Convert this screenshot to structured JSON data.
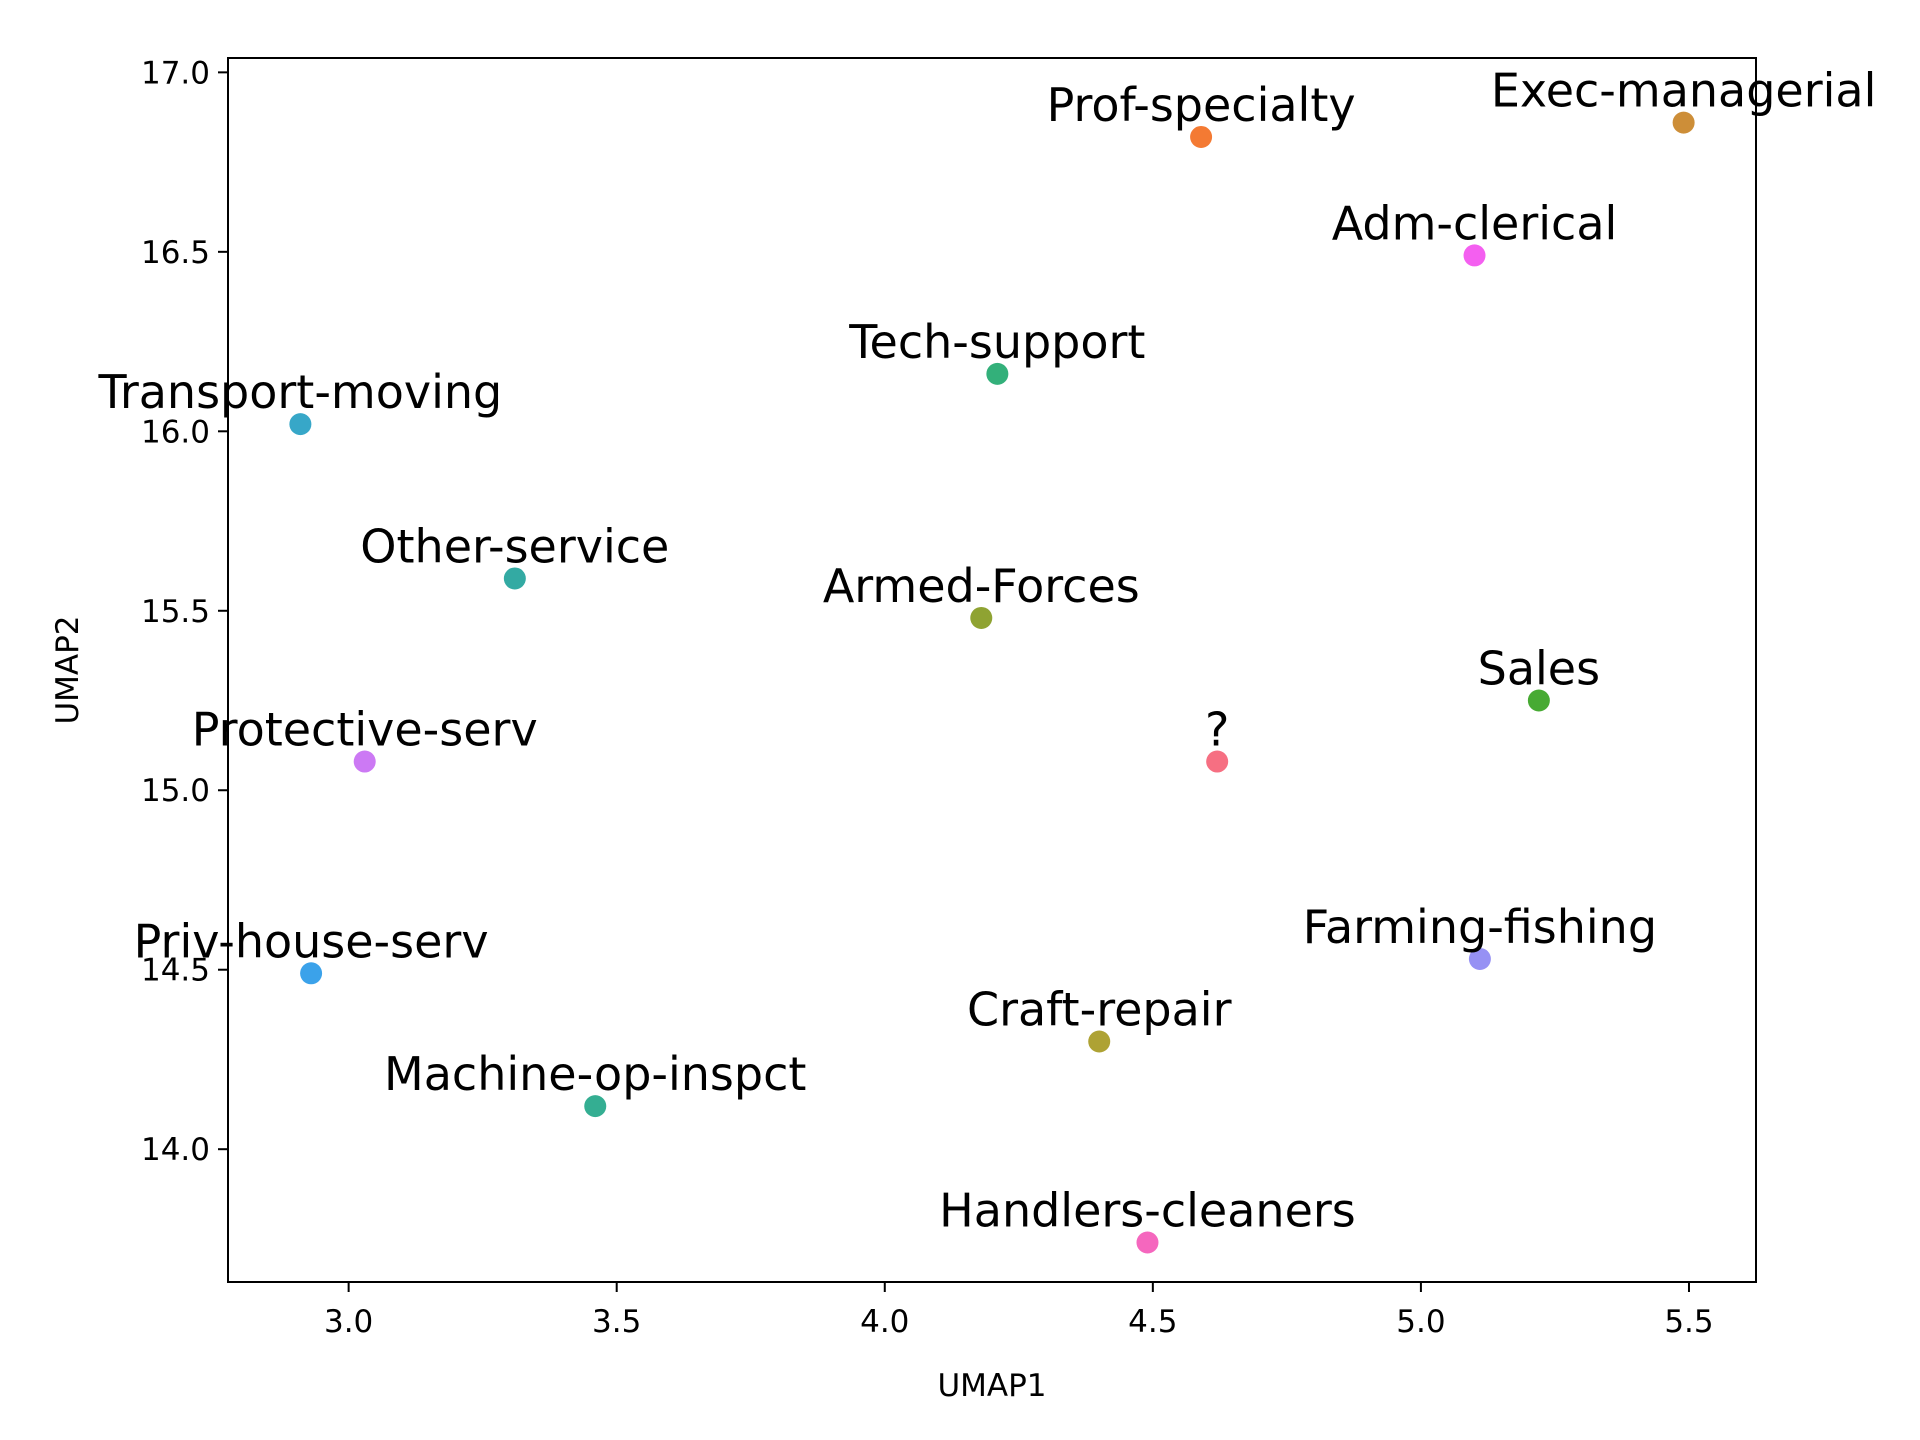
{
  "chart_data": {
    "type": "scatter",
    "title": "",
    "xlabel": "UMAP1",
    "ylabel": "UMAP2",
    "xlim": [
      2.775,
      5.625
    ],
    "ylim": [
      13.63,
      17.04
    ],
    "xticks": [
      3.0,
      3.5,
      4.0,
      4.5,
      5.0,
      5.5
    ],
    "xtick_labels": [
      "3.0",
      "3.5",
      "4.0",
      "4.5",
      "5.0",
      "5.5"
    ],
    "yticks": [
      14.0,
      14.5,
      15.0,
      15.5,
      16.0,
      16.5,
      17.0
    ],
    "ytick_labels": [
      "14.0",
      "14.5",
      "15.0",
      "15.5",
      "16.0",
      "16.5",
      "17.0"
    ],
    "grid": false,
    "points": [
      {
        "label": "Prof-specialty",
        "x": 4.59,
        "y": 16.82,
        "color": "#f47a33"
      },
      {
        "label": "Exec-managerial",
        "x": 5.49,
        "y": 16.86,
        "color": "#cd8e38"
      },
      {
        "label": "Adm-clerical",
        "x": 5.1,
        "y": 16.49,
        "color": "#f45ff0"
      },
      {
        "label": "Tech-support",
        "x": 4.21,
        "y": 16.16,
        "color": "#33b07a"
      },
      {
        "label": "Transport-moving",
        "x": 2.91,
        "y": 16.02,
        "color": "#37a7c8"
      },
      {
        "label": "Other-service",
        "x": 3.31,
        "y": 15.59,
        "color": "#33aaa3"
      },
      {
        "label": "Armed-Forces",
        "x": 4.18,
        "y": 15.48,
        "color": "#8fa332"
      },
      {
        "label": "Sales",
        "x": 5.22,
        "y": 15.25,
        "color": "#47aa33"
      },
      {
        "label": "?",
        "x": 4.62,
        "y": 15.08,
        "color": "#f66f82"
      },
      {
        "label": "Protective-serv",
        "x": 3.03,
        "y": 15.08,
        "color": "#cc79f4"
      },
      {
        "label": "Priv-house-serv",
        "x": 2.93,
        "y": 14.49,
        "color": "#3ba2ea"
      },
      {
        "label": "Farming-fishing",
        "x": 5.11,
        "y": 14.53,
        "color": "#9691f4"
      },
      {
        "label": "Craft-repair",
        "x": 4.4,
        "y": 14.3,
        "color": "#aea234"
      },
      {
        "label": "Machine-op-inspct",
        "x": 3.46,
        "y": 14.12,
        "color": "#34ae92"
      },
      {
        "label": "Handlers-cleaners",
        "x": 4.49,
        "y": 13.74,
        "color": "#f567be"
      }
    ]
  }
}
